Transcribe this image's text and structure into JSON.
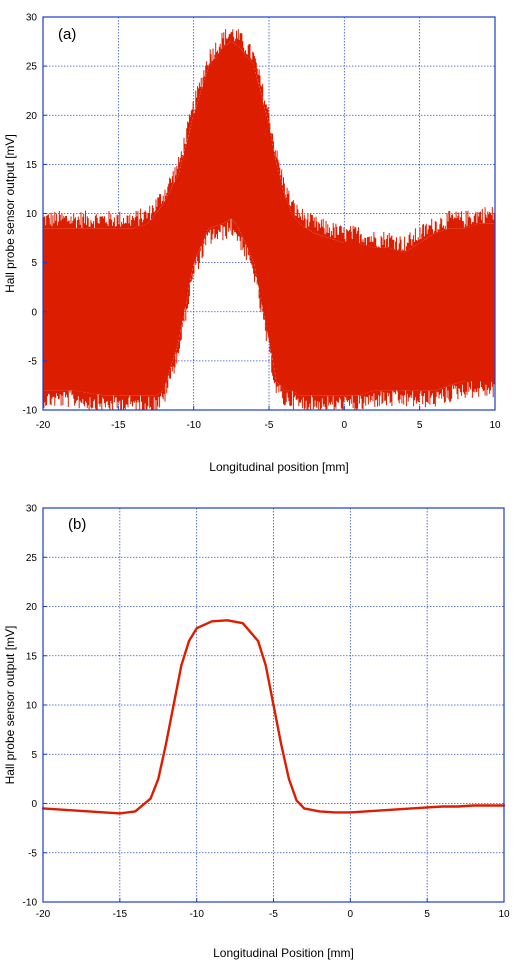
{
  "colors": {
    "frame": "#1a3cc8",
    "grid": "#2f4fd0",
    "trace": "#dd1d00",
    "text": "#000000"
  },
  "chart_data": [
    {
      "type": "area",
      "panel_label": "(a)",
      "title": "",
      "xlabel": "Longitudinal position [mm]",
      "ylabel": "Hall probe sensor output [mV]",
      "xlim": [
        -20,
        10
      ],
      "ylim": [
        -10,
        30
      ],
      "x_ticks": [
        -20,
        -15,
        -10,
        -5,
        0,
        5,
        10
      ],
      "y_ticks": [
        -10,
        -5,
        0,
        5,
        10,
        15,
        20,
        25,
        30
      ],
      "grid": true,
      "legend": "none",
      "series": [
        {
          "x": [
            -20,
            -18,
            -16,
            -15,
            -14,
            -13,
            -12.5,
            -12,
            -11,
            -10,
            -9,
            -8,
            -7.5,
            -7,
            -6,
            -5,
            -4.5,
            -4,
            -3.5,
            -3,
            -2,
            -1,
            0,
            1,
            2,
            3,
            4,
            5,
            6,
            7,
            8,
            9,
            10
          ],
          "upper": [
            8.5,
            8.5,
            8.5,
            8.5,
            8.5,
            9,
            10,
            11,
            14,
            20,
            25,
            27,
            27.5,
            27,
            25,
            19,
            15,
            12,
            10,
            9,
            8,
            7.5,
            7,
            7,
            6.5,
            6.5,
            6,
            7,
            8,
            8.5,
            8.5,
            9,
            9
          ],
          "lower": [
            -8,
            -8,
            -8.5,
            -8.5,
            -8.5,
            -8.5,
            -8.5,
            -8,
            -3,
            5,
            8.5,
            9,
            9.5,
            8.5,
            5,
            -3,
            -7,
            -8,
            -8,
            -8.5,
            -8.5,
            -8.5,
            -8.5,
            -8.5,
            -8,
            -8,
            -8,
            -8,
            -8,
            -7.5,
            -7,
            -7,
            -7
          ]
        }
      ]
    },
    {
      "type": "line",
      "panel_label": "(b)",
      "title": "",
      "xlabel": "Longitudinal Position [mm]",
      "ylabel": "Hall probe sensor output [mV]",
      "xlim": [
        -20,
        10
      ],
      "ylim": [
        -10,
        30
      ],
      "x_ticks": [
        -20,
        -15,
        -10,
        -5,
        0,
        5,
        10
      ],
      "y_ticks": [
        -10,
        -5,
        0,
        5,
        10,
        15,
        20,
        25,
        30
      ],
      "grid": true,
      "legend": "none",
      "series": [
        {
          "x": [
            -20,
            -19,
            -18,
            -17,
            -16,
            -15,
            -14,
            -13,
            -12.5,
            -12,
            -11.5,
            -11,
            -10.5,
            -10,
            -9,
            -8,
            -7,
            -6,
            -5.5,
            -5,
            -4.5,
            -4,
            -3.5,
            -3,
            -2,
            -1,
            0,
            1,
            2,
            3,
            4,
            5,
            6,
            7,
            8,
            9,
            10
          ],
          "y": [
            -0.5,
            -0.6,
            -0.7,
            -0.8,
            -0.9,
            -1.0,
            -0.8,
            0.5,
            2.5,
            6,
            10,
            14,
            16.5,
            17.8,
            18.5,
            18.6,
            18.3,
            16.5,
            14,
            10,
            6,
            2.5,
            0.3,
            -0.5,
            -0.8,
            -0.9,
            -0.9,
            -0.8,
            -0.7,
            -0.6,
            -0.5,
            -0.4,
            -0.3,
            -0.3,
            -0.2,
            -0.2,
            -0.2
          ]
        }
      ]
    }
  ]
}
